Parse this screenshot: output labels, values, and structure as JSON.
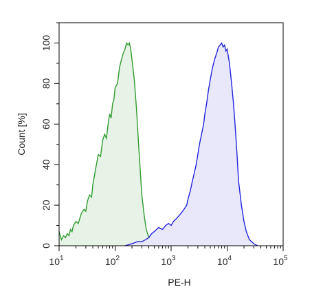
{
  "chart_data": {
    "type": "area",
    "xlabel": "PE-H",
    "ylabel": "Count [%]",
    "x_scale": "log",
    "xlim": [
      10,
      100000
    ],
    "ylim": [
      0,
      110
    ],
    "x_ticks": [
      {
        "value": 10,
        "base": "10",
        "exp": "1"
      },
      {
        "value": 100,
        "base": "10",
        "exp": "2"
      },
      {
        "value": 1000,
        "base": "10",
        "exp": "3"
      },
      {
        "value": 10000,
        "base": "10",
        "exp": "4"
      },
      {
        "value": 100000,
        "base": "10",
        "exp": "5"
      }
    ],
    "y_ticks": [
      "0",
      "20",
      "40",
      "60",
      "80",
      "100"
    ],
    "grid": false,
    "series": [
      {
        "color": "#2e9a2e",
        "fill": "#e6f3e6",
        "points": [
          [
            10,
            7
          ],
          [
            11,
            3
          ],
          [
            12,
            5
          ],
          [
            13,
            4
          ],
          [
            14,
            6
          ],
          [
            15,
            5
          ],
          [
            16,
            8
          ],
          [
            17,
            7
          ],
          [
            18,
            10
          ],
          [
            20,
            12
          ],
          [
            22,
            11
          ],
          [
            25,
            16
          ],
          [
            28,
            18
          ],
          [
            30,
            17
          ],
          [
            32,
            22
          ],
          [
            35,
            25
          ],
          [
            38,
            24
          ],
          [
            40,
            30
          ],
          [
            45,
            38
          ],
          [
            50,
            45
          ],
          [
            55,
            44
          ],
          [
            60,
            52
          ],
          [
            65,
            55
          ],
          [
            70,
            53
          ],
          [
            75,
            60
          ],
          [
            80,
            65
          ],
          [
            85,
            63
          ],
          [
            90,
            70
          ],
          [
            95,
            72
          ],
          [
            100,
            78
          ],
          [
            110,
            80
          ],
          [
            120,
            88
          ],
          [
            130,
            92
          ],
          [
            140,
            95
          ],
          [
            150,
            97
          ],
          [
            160,
            100
          ],
          [
            170,
            99
          ],
          [
            180,
            100
          ],
          [
            190,
            97
          ],
          [
            200,
            92
          ],
          [
            220,
            82
          ],
          [
            240,
            68
          ],
          [
            260,
            52
          ],
          [
            280,
            38
          ],
          [
            300,
            25
          ],
          [
            330,
            15
          ],
          [
            360,
            8
          ],
          [
            400,
            4
          ],
          [
            450,
            2
          ],
          [
            500,
            1
          ],
          [
            600,
            0
          ]
        ]
      },
      {
        "color": "#2222dd",
        "fill": "#e8e8fa",
        "points": [
          [
            150,
            0
          ],
          [
            200,
            1
          ],
          [
            250,
            2
          ],
          [
            300,
            2
          ],
          [
            350,
            3
          ],
          [
            400,
            4
          ],
          [
            450,
            6
          ],
          [
            500,
            7
          ],
          [
            550,
            8
          ],
          [
            600,
            9
          ],
          [
            700,
            8
          ],
          [
            800,
            10
          ],
          [
            900,
            11
          ],
          [
            1000,
            10
          ],
          [
            1100,
            12
          ],
          [
            1200,
            13
          ],
          [
            1300,
            14
          ],
          [
            1400,
            15
          ],
          [
            1500,
            16
          ],
          [
            1700,
            18
          ],
          [
            1900,
            20
          ],
          [
            2000,
            23
          ],
          [
            2200,
            27
          ],
          [
            2400,
            32
          ],
          [
            2600,
            36
          ],
          [
            2800,
            40
          ],
          [
            3000,
            45
          ],
          [
            3200,
            50
          ],
          [
            3500,
            55
          ],
          [
            3800,
            60
          ],
          [
            4000,
            65
          ],
          [
            4300,
            70
          ],
          [
            4600,
            76
          ],
          [
            5000,
            82
          ],
          [
            5500,
            88
          ],
          [
            6000,
            92
          ],
          [
            6500,
            95
          ],
          [
            7000,
            98
          ],
          [
            7500,
            99
          ],
          [
            8000,
            100
          ],
          [
            8500,
            98
          ],
          [
            9000,
            99
          ],
          [
            9500,
            96
          ],
          [
            10000,
            97
          ],
          [
            11000,
            90
          ],
          [
            12000,
            80
          ],
          [
            13000,
            70
          ],
          [
            14000,
            58
          ],
          [
            15000,
            45
          ],
          [
            16000,
            32
          ],
          [
            18000,
            20
          ],
          [
            20000,
            12
          ],
          [
            22000,
            7
          ],
          [
            25000,
            3
          ],
          [
            30000,
            1
          ],
          [
            35000,
            0
          ]
        ]
      }
    ]
  }
}
